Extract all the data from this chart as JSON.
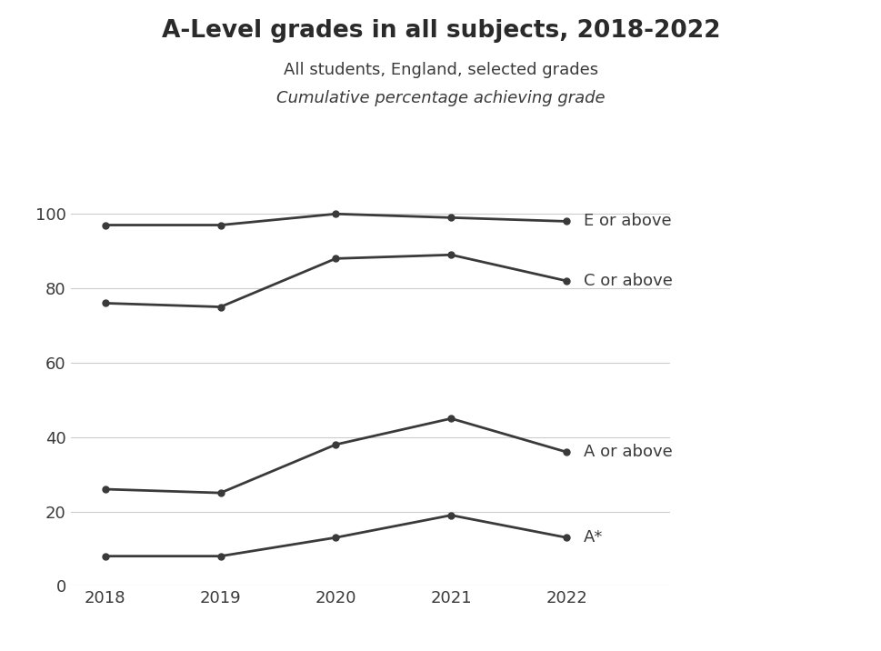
{
  "title": "A-Level grades in all subjects, 2018-2022",
  "subtitle1": "All students, England, selected grades",
  "subtitle2": "Cumulative percentage achieving grade",
  "years": [
    2018,
    2019,
    2020,
    2021,
    2022
  ],
  "series": [
    {
      "label": "E or above",
      "values": [
        97,
        97,
        100,
        99,
        98
      ]
    },
    {
      "label": "C or above",
      "values": [
        76,
        75,
        88,
        89,
        82
      ]
    },
    {
      "label": "A or above",
      "values": [
        26,
        25,
        38,
        45,
        36
      ]
    },
    {
      "label": "A*",
      "values": [
        8,
        8,
        13,
        19,
        13
      ]
    }
  ],
  "line_color": "#3a3a3a",
  "marker": "o",
  "marker_size": 5,
  "marker_color": "#3a3a3a",
  "ylim": [
    0,
    105
  ],
  "yticks": [
    0,
    20,
    40,
    60,
    80,
    100
  ],
  "xlim_left": 2017.7,
  "xlim_right": 2022.9,
  "background_color": "#ffffff",
  "grid_color": "#cccccc",
  "title_fontsize": 19,
  "subtitle1_fontsize": 13,
  "subtitle2_fontsize": 13,
  "tick_fontsize": 13,
  "annotation_fontsize": 13,
  "line_width": 2.0
}
